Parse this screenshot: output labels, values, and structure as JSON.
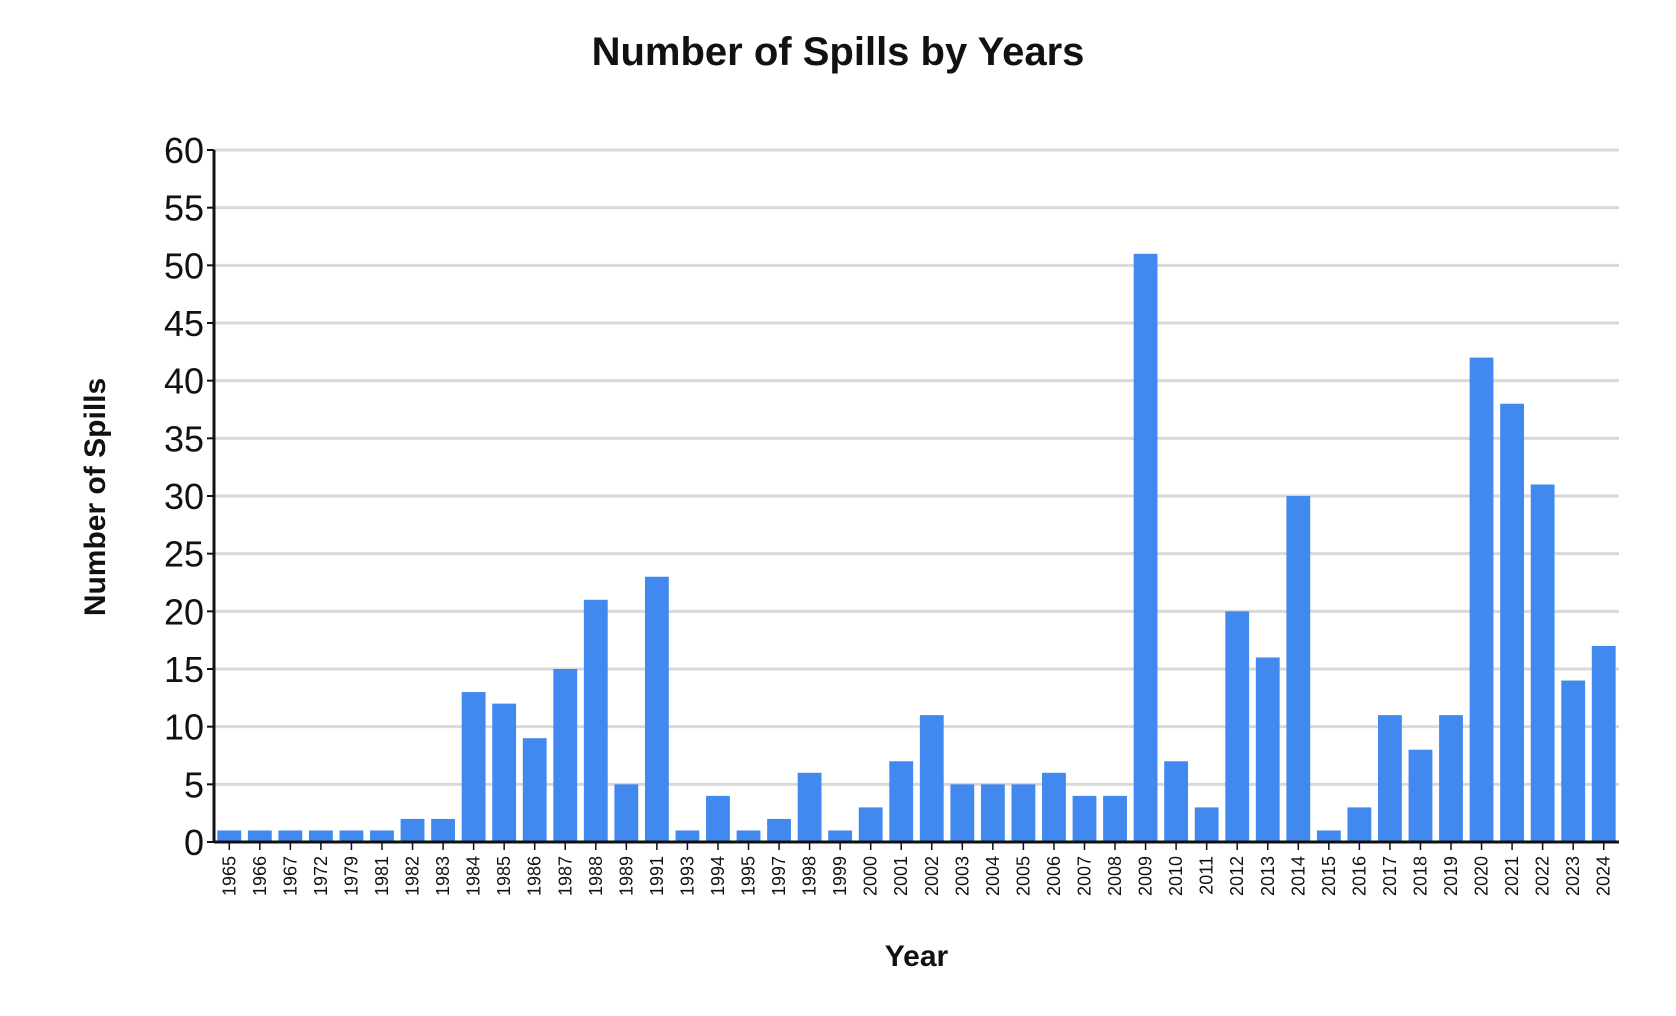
{
  "chart_data": {
    "type": "bar",
    "title": "Number of Spills by Years",
    "xlabel": "Year",
    "ylabel": "Number of Spills",
    "ylim": [
      0,
      60
    ],
    "yticks": [
      0,
      5,
      10,
      15,
      20,
      25,
      30,
      35,
      40,
      45,
      50,
      55,
      60
    ],
    "grid": true,
    "bar_color": "#4189EE",
    "categories": [
      "1965",
      "1966",
      "1967",
      "1972",
      "1979",
      "1981",
      "1982",
      "1983",
      "1984",
      "1985",
      "1986",
      "1987",
      "1988",
      "1989",
      "1991",
      "1993",
      "1994",
      "1995",
      "1997",
      "1998",
      "1999",
      "2000",
      "2001",
      "2002",
      "2003",
      "2004",
      "2005",
      "2006",
      "2007",
      "2008",
      "2009",
      "2010",
      "2011",
      "2012",
      "2013",
      "2014",
      "2015",
      "2016",
      "2017",
      "2018",
      "2019",
      "2020",
      "2021",
      "2022",
      "2023",
      "2024"
    ],
    "values": [
      1,
      1,
      1,
      1,
      1,
      1,
      2,
      2,
      13,
      12,
      9,
      15,
      21,
      5,
      23,
      1,
      4,
      1,
      2,
      6,
      1,
      3,
      7,
      11,
      5,
      5,
      5,
      6,
      4,
      4,
      51,
      7,
      3,
      20,
      16,
      30,
      1,
      3,
      11,
      8,
      11,
      42,
      38,
      31,
      14,
      17
    ]
  }
}
